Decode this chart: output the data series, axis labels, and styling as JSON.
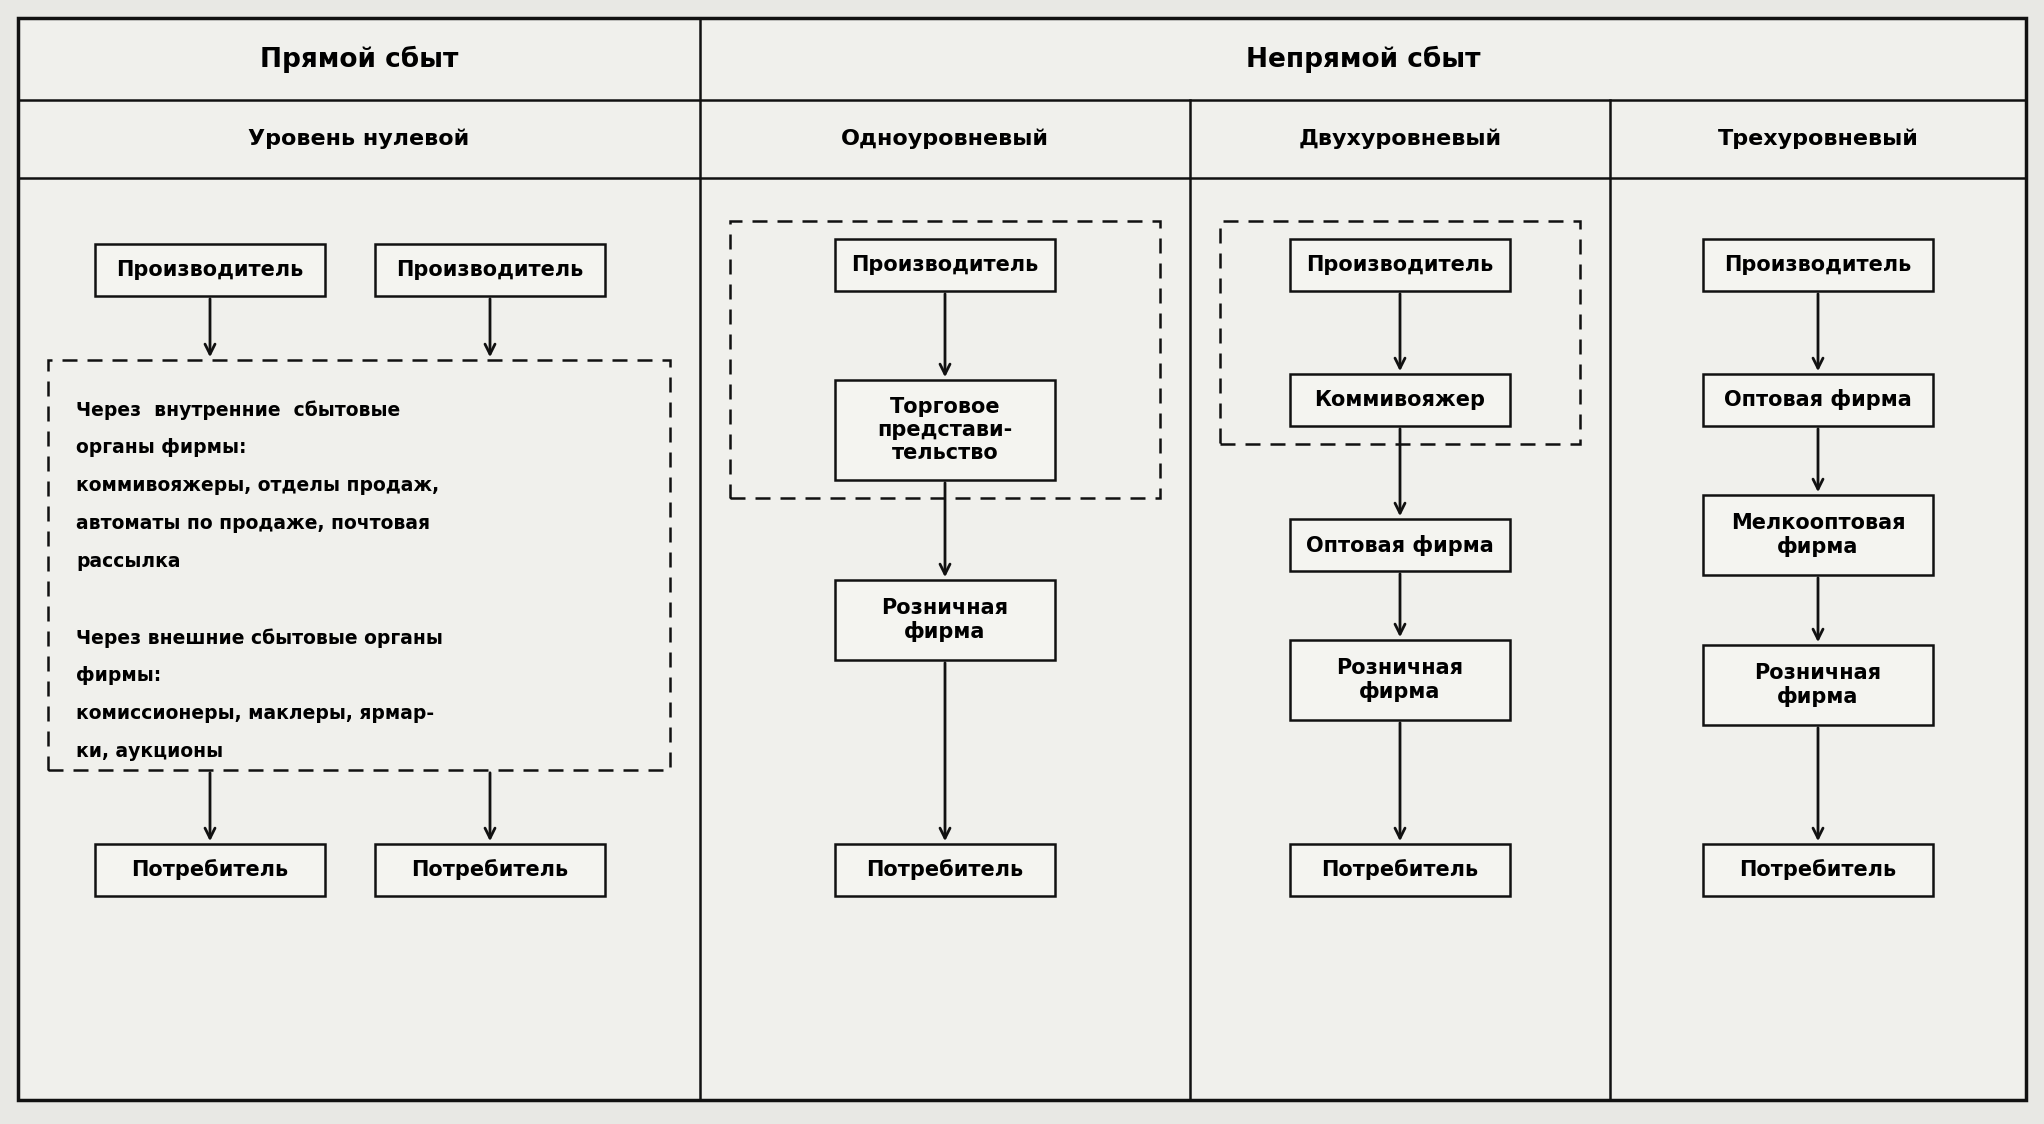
{
  "bg_color": "#e8e8e4",
  "cell_color": "#f0f0ec",
  "border_color": "#111111",
  "box_color": "#f4f4f0",
  "text_color": "#000000",
  "figsize": [
    20.44,
    11.24
  ],
  "dpi": 100,
  "header1_text": "Прямой сбыт",
  "header2_text": "Непрямой сбыт",
  "sub_headers": [
    "Уровень нулевой",
    "Одноуровневый",
    "Двухуровневый",
    "Трехуровневый"
  ],
  "middle_box_text_line1": "Через  внутренние  сбытовые",
  "middle_box_text_line2": "органы фирмы:",
  "middle_box_text_line3": "коммивояжеры, отделы продаж,",
  "middle_box_text_line4": "автоматы по продаже, почтовая",
  "middle_box_text_line5": "рассылка",
  "middle_box_text_line6": "",
  "middle_box_text_line7": "Через внешние сбытовые органы",
  "middle_box_text_line8": "фирмы:",
  "middle_box_text_line9": "комиссионеры, маклеры, ярмар-",
  "middle_box_text_line10": "ки, аукционы"
}
